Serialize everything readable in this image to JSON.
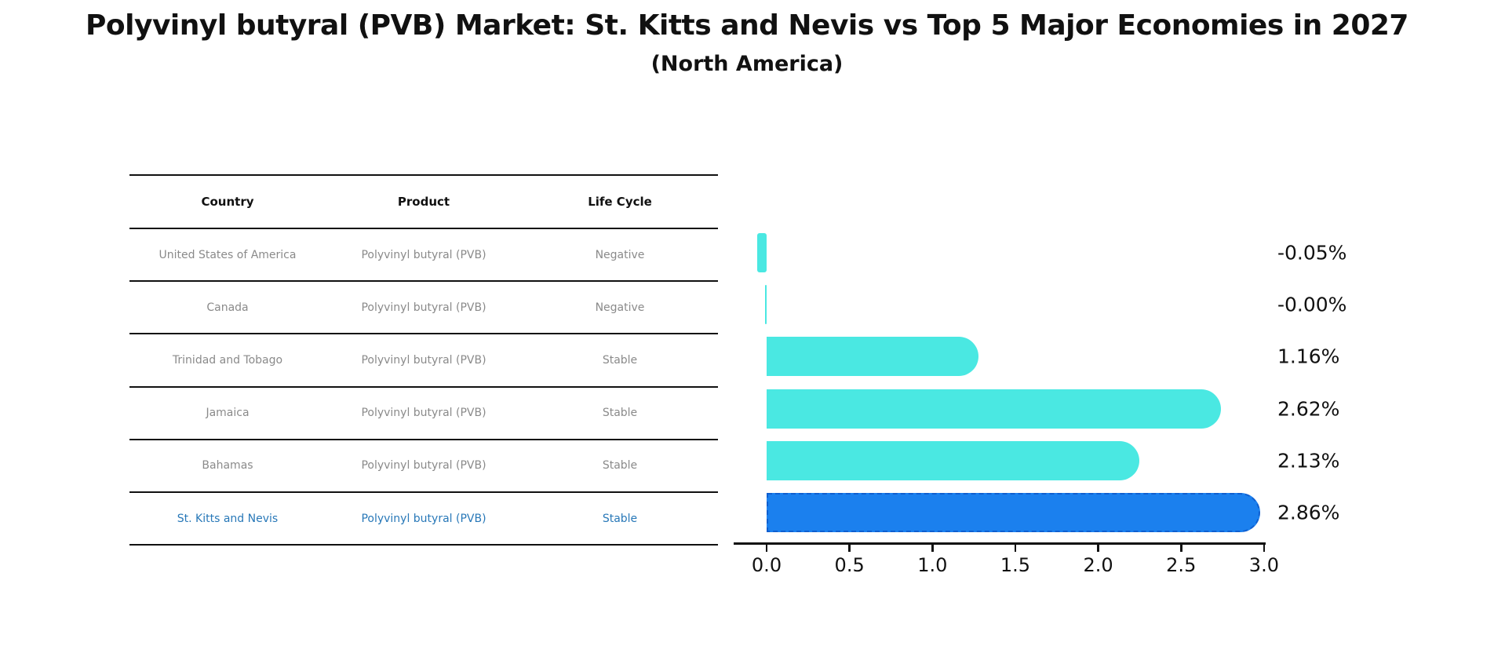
{
  "title": "Polyvinyl butyral (PVB) Market: St. Kitts and Nevis vs Top 5 Major Economies in 2027",
  "subtitle": "(North America)",
  "table": {
    "headers": [
      "Country",
      "Product",
      "Life Cycle"
    ],
    "rows": [
      {
        "country": "United States of America",
        "product": "Polyvinyl butyral (PVB)",
        "life_cycle": "Negative",
        "highlighted": false
      },
      {
        "country": "Canada",
        "product": "Polyvinyl butyral (PVB)",
        "life_cycle": "Negative",
        "highlighted": false
      },
      {
        "country": "Trinidad and Tobago",
        "product": "Polyvinyl butyral (PVB)",
        "life_cycle": "Stable",
        "highlighted": false
      },
      {
        "country": "Jamaica",
        "product": "Polyvinyl butyral (PVB)",
        "life_cycle": "Stable",
        "highlighted": false
      },
      {
        "country": "Bahamas",
        "product": "Polyvinyl butyral (PVB)",
        "life_cycle": "Stable",
        "highlighted": false
      },
      {
        "country": "St. Kitts and Nevis",
        "product": "Polyvinyl butyral (PVB)",
        "life_cycle": "Stable",
        "highlighted": true
      }
    ]
  },
  "chart_data": {
    "type": "bar",
    "orientation": "horizontal",
    "title": "Polyvinyl butyral (PVB) Market: St. Kitts and Nevis vs Top 5 Major Economies in 2027",
    "subtitle": "(North America)",
    "categories": [
      "United States of America",
      "Canada",
      "Trinidad and Tobago",
      "Jamaica",
      "Bahamas",
      "St. Kitts and Nevis"
    ],
    "values": [
      -0.05,
      -0.0,
      1.16,
      2.62,
      2.13,
      2.86
    ],
    "value_labels": [
      "-0.05%",
      "-0.00%",
      "1.16%",
      "2.62%",
      "2.13%",
      "2.86%"
    ],
    "xlim": [
      0.0,
      3.0
    ],
    "x_ticks": [
      "0.0",
      "0.5",
      "1.0",
      "1.5",
      "2.0",
      "2.5",
      "3.0"
    ],
    "highlight_index": 5,
    "grid": false,
    "legend": "none",
    "colors": {
      "bar": "#4AE8E2",
      "highlight_bar": "#1B80EE",
      "highlight_bar_border": "#0F5FD0",
      "value_label_text": "#111111",
      "table_text": "#8A8A8A",
      "highlight_text": "#2878B8",
      "axis": "#111111",
      "background": "#FFFFFF"
    }
  }
}
